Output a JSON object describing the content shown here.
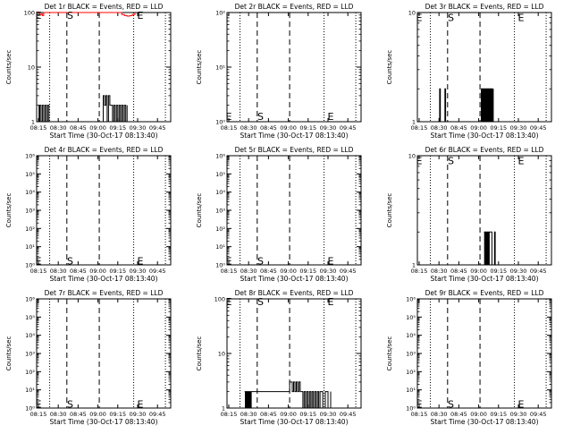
{
  "colors": {
    "events": "#000000",
    "lld": "#ff0000",
    "background": "#ffffff"
  },
  "chart_data": [
    {
      "type": "line",
      "title": "Det 1r BLACK = Events, RED = LLD",
      "xlabel": "Start Time (30-Oct-17 08:13:40)",
      "ylabel": "Counts/sec",
      "y_scale": "log",
      "ylim": [
        1,
        100
      ],
      "y_ticks": [
        "1",
        "10",
        "100"
      ],
      "x_ticks": [
        "08:15",
        "08:30",
        "08:45",
        "09:00",
        "09:15",
        "09:30",
        "09:45"
      ],
      "xlim": [
        "08:13:40",
        "09:55:00"
      ],
      "markers": [
        {
          "label": "E",
          "x": "08:15:00",
          "y": 90
        },
        {
          "label": "S",
          "x": "08:39:00",
          "y": 90
        },
        {
          "label": "E",
          "x": "09:32:00",
          "y": 90
        }
      ],
      "vlines_dotted": [
        "08:23:30",
        "09:27:00",
        "09:51:00"
      ],
      "vlines_dashed": [
        "08:36:30",
        "09:01:00"
      ],
      "series": [
        {
          "color": "black",
          "x": [
            "08:15:00",
            "08:15:30",
            "08:16:00",
            "08:17:00",
            "08:18:00",
            "08:19:00",
            "08:20:00",
            "08:21:00",
            "08:22:00",
            "08:23:00",
            "09:04:00",
            "09:05:00",
            "09:06:00",
            "09:07:00",
            "09:08:00",
            "09:09:00",
            "09:10:00",
            "09:11:00",
            "09:12:00",
            "09:13:00",
            "09:14:00",
            "09:15:00",
            "09:16:00",
            "09:17:00",
            "09:18:00",
            "09:19:00",
            "09:20:00",
            "09:21:00",
            "09:22:00"
          ],
          "values": [
            2,
            1,
            2,
            1,
            2,
            1,
            2,
            1,
            2,
            1,
            3,
            2,
            3,
            1,
            3,
            2,
            2,
            1,
            2,
            1,
            2,
            1,
            2,
            1,
            2,
            1,
            2,
            1,
            2
          ]
        },
        {
          "color": "red",
          "x": [
            "08:13:40",
            "08:15:00",
            "08:16:00",
            "08:17:00",
            "08:18:00",
            "08:19:00",
            "09:17:00",
            "09:18:00",
            "09:20:00",
            "09:22:00",
            "09:24:00",
            "09:26:00",
            "09:28:00"
          ],
          "values": [
            100,
            100,
            90,
            94,
            88,
            100,
            100,
            92,
            88,
            86,
            88,
            92,
            100
          ]
        }
      ]
    },
    {
      "type": "line",
      "title": "Det 2r BLACK = Events, RED = LLD",
      "xlabel": "Start Time (30-Oct-17 08:13:40)",
      "ylabel": "Counts/sec",
      "y_scale": "log",
      "ylim": [
        1,
        100
      ],
      "y_ticks": [
        "10⁰",
        "10¹",
        "10²"
      ],
      "x_ticks": [
        "08:15",
        "08:30",
        "08:45",
        "09:00",
        "09:15",
        "09:30",
        "09:45"
      ],
      "xlim": [
        "08:13:40",
        "09:55:00"
      ],
      "markers": [
        {
          "label": "E",
          "x": "08:15:00",
          "y": 1.25
        },
        {
          "label": "S",
          "x": "08:39:00",
          "y": 1.25
        },
        {
          "label": "E",
          "x": "09:32:00",
          "y": 1.25
        }
      ],
      "vlines_dotted": [
        "08:23:30",
        "09:27:00",
        "09:51:00"
      ],
      "vlines_dashed": [
        "08:36:30",
        "09:01:00"
      ],
      "series": []
    },
    {
      "type": "line",
      "title": "Det 3r BLACK = Events, RED = LLD",
      "xlabel": "Start Time (30-Oct-17 08:13:40)",
      "ylabel": "Counts/sec",
      "y_scale": "log",
      "ylim": [
        1,
        10
      ],
      "y_ticks": [
        "1",
        "10"
      ],
      "x_ticks": [
        "08:15",
        "08:30",
        "08:45",
        "09:00",
        "09:15",
        "09:30",
        "09:45"
      ],
      "xlim": [
        "08:13:40",
        "09:55:00"
      ],
      "markers": [
        {
          "label": "E",
          "x": "08:15:00",
          "y": 9
        },
        {
          "label": "S",
          "x": "08:39:00",
          "y": 9
        },
        {
          "label": "E",
          "x": "09:32:00",
          "y": 9
        }
      ],
      "vlines_dotted": [
        "08:23:30",
        "09:27:00",
        "09:51:00"
      ],
      "vlines_dashed": [
        "08:36:30",
        "09:01:00"
      ],
      "series": [
        {
          "color": "black",
          "x": [
            "08:30:00",
            "08:30:30",
            "08:31:00",
            "08:34:00",
            "08:34:30",
            "08:35:00",
            "09:02:00",
            "09:02:30",
            "09:03:00",
            "09:03:30",
            "09:04:00",
            "09:04:30",
            "09:05:00",
            "09:05:30",
            "09:06:00",
            "09:06:30",
            "09:07:00",
            "09:07:30",
            "09:08:00",
            "09:08:30",
            "09:09:00",
            "09:09:30",
            "09:10:00",
            "09:10:30",
            "09:11:00"
          ],
          "values": [
            1,
            2,
            1,
            1,
            2,
            1,
            2,
            1,
            2,
            1,
            2,
            1,
            2,
            1,
            2,
            1,
            2,
            1,
            2,
            1,
            2,
            1,
            2,
            1,
            2
          ]
        }
      ]
    },
    {
      "type": "line",
      "title": "Det 4r BLACK = Events, RED = LLD",
      "xlabel": "Start Time (30-Oct-17 08:13:40)",
      "ylabel": "Counts/sec",
      "y_scale": "log",
      "ylim": [
        1,
        1000000
      ],
      "y_ticks": [
        "10⁰",
        "10¹",
        "10²",
        "10³",
        "10⁴",
        "10⁵",
        "10⁶"
      ],
      "x_ticks": [
        "08:15",
        "08:30",
        "08:45",
        "09:00",
        "09:15",
        "09:30",
        "09:45"
      ],
      "xlim": [
        "08:13:40",
        "09:55:00"
      ],
      "markers": [
        {
          "label": "E",
          "x": "08:15:00",
          "y": 1.7
        },
        {
          "label": "S",
          "x": "08:39:00",
          "y": 1.7
        },
        {
          "label": "E",
          "x": "09:32:00",
          "y": 1.7
        }
      ],
      "vlines_dotted": [
        "08:23:30",
        "09:27:00",
        "09:51:00"
      ],
      "vlines_dashed": [
        "08:36:30",
        "09:01:00"
      ],
      "series": []
    },
    {
      "type": "line",
      "title": "Det 5r BLACK = Events, RED = LLD",
      "xlabel": "Start Time (30-Oct-17 08:13:40)",
      "ylabel": "Counts/sec",
      "y_scale": "log",
      "ylim": [
        1,
        1000000
      ],
      "y_ticks": [
        "10⁰",
        "10¹",
        "10²",
        "10³",
        "10⁴",
        "10⁵",
        "10⁶"
      ],
      "x_ticks": [
        "08:15",
        "08:30",
        "08:45",
        "09:00",
        "09:15",
        "09:30",
        "09:45"
      ],
      "xlim": [
        "08:13:40",
        "09:55:00"
      ],
      "markers": [
        {
          "label": "E",
          "x": "08:15:00",
          "y": 1.7
        },
        {
          "label": "S",
          "x": "08:39:00",
          "y": 1.7
        },
        {
          "label": "E",
          "x": "09:32:00",
          "y": 1.7
        }
      ],
      "vlines_dotted": [
        "08:23:30",
        "09:27:00",
        "09:51:00"
      ],
      "vlines_dashed": [
        "08:36:30",
        "09:01:00"
      ],
      "series": []
    },
    {
      "type": "line",
      "title": "Det 6r BLACK = Events, RED = LLD",
      "xlabel": "Start Time (30-Oct-17 08:13:40)",
      "ylabel": "Counts/sec",
      "y_scale": "log",
      "ylim": [
        1,
        10
      ],
      "y_ticks": [
        "1",
        "10"
      ],
      "x_ticks": [
        "08:15",
        "08:30",
        "08:45",
        "09:00",
        "09:15",
        "09:30",
        "09:45"
      ],
      "xlim": [
        "08:13:40",
        "09:55:00"
      ],
      "markers": [
        {
          "label": "E",
          "x": "08:15:00",
          "y": 9
        },
        {
          "label": "S",
          "x": "08:39:00",
          "y": 9
        },
        {
          "label": "E",
          "x": "09:32:00",
          "y": 9
        }
      ],
      "vlines_dotted": [
        "08:23:30",
        "09:27:00",
        "09:51:00"
      ],
      "vlines_dashed": [
        "08:36:30",
        "09:01:00"
      ],
      "series": [
        {
          "color": "black",
          "x": [
            "09:04:00",
            "09:04:30",
            "09:05:00",
            "09:05:30",
            "09:06:00",
            "09:06:30",
            "09:07:00",
            "09:07:30",
            "09:08:00",
            "09:10:00",
            "09:12:00",
            "09:12:30"
          ],
          "values": [
            2,
            1,
            2,
            1,
            2,
            1,
            2,
            1,
            2,
            1,
            2,
            1
          ]
        }
      ]
    },
    {
      "type": "line",
      "title": "Det 7r BLACK = Events, RED = LLD",
      "xlabel": "Start Time (30-Oct-17 08:13:40)",
      "ylabel": "Counts/sec",
      "y_scale": "log",
      "ylim": [
        1,
        1000000
      ],
      "y_ticks": [
        "10⁰",
        "10¹",
        "10²",
        "10³",
        "10⁴",
        "10⁵",
        "10⁶"
      ],
      "x_ticks": [
        "08:15",
        "08:30",
        "08:45",
        "09:00",
        "09:15",
        "09:30",
        "09:45"
      ],
      "xlim": [
        "08:13:40",
        "09:55:00"
      ],
      "markers": [
        {
          "label": "E",
          "x": "08:15:00",
          "y": 1.7
        },
        {
          "label": "S",
          "x": "08:39:00",
          "y": 1.7
        },
        {
          "label": "E",
          "x": "09:32:00",
          "y": 1.7
        }
      ],
      "vlines_dotted": [
        "08:23:30",
        "09:27:00",
        "09:51:00"
      ],
      "vlines_dashed": [
        "08:36:30",
        "09:01:00"
      ],
      "series": []
    },
    {
      "type": "line",
      "title": "Det 8r BLACK = Events, RED = LLD",
      "xlabel": "Start Time (30-Oct-17 08:13:40)",
      "ylabel": "Counts/sec",
      "y_scale": "log",
      "ylim": [
        1,
        100
      ],
      "y_ticks": [
        "1",
        "10",
        "100"
      ],
      "x_ticks": [
        "08:15",
        "08:30",
        "08:45",
        "09:00",
        "09:15",
        "09:30",
        "09:45"
      ],
      "xlim": [
        "08:13:40",
        "09:55:00"
      ],
      "markers": [
        {
          "label": "E",
          "x": "08:15:00",
          "y": 90
        },
        {
          "label": "S",
          "x": "08:39:00",
          "y": 90
        },
        {
          "label": "E",
          "x": "09:32:00",
          "y": 90
        }
      ],
      "vlines_dotted": [
        "08:23:30",
        "09:27:00",
        "09:51:00"
      ],
      "vlines_dashed": [
        "08:36:30",
        "09:01:00"
      ],
      "series": [
        {
          "color": "black",
          "x": [
            "08:27:00",
            "08:27:30",
            "08:28:00",
            "08:28:30",
            "08:29:00",
            "08:29:30",
            "08:30:00",
            "08:30:30",
            "08:31:00",
            "08:31:30",
            "08:32:00",
            "08:59:00",
            "09:01:00",
            "09:03:00",
            "09:04:00",
            "09:05:00",
            "09:06:00",
            "09:07:00",
            "09:08:00",
            "09:09:00",
            "09:10:00",
            "09:11:00",
            "09:12:00",
            "09:13:00",
            "09:14:00",
            "09:15:00",
            "09:16:00",
            "09:17:00",
            "09:18:00",
            "09:19:00",
            "09:20:00",
            "09:21:00",
            "09:22:00",
            "09:23:00",
            "09:24:00",
            "09:26:00",
            "09:28:00",
            "09:30:00",
            "09:32:00"
          ],
          "values": [
            2,
            1,
            2,
            1,
            2,
            1,
            2,
            1,
            2,
            1,
            2,
            2,
            3,
            2,
            3,
            2,
            3,
            2,
            3,
            2,
            2,
            1,
            2,
            1,
            2,
            1,
            2,
            1,
            2,
            1,
            2,
            1,
            2,
            1,
            2,
            1,
            2,
            1,
            2
          ]
        }
      ]
    },
    {
      "type": "line",
      "title": "Det 9r BLACK = Events, RED = LLD",
      "xlabel": "Start Time (30-Oct-17 08:13:40)",
      "ylabel": "Counts/sec",
      "y_scale": "log",
      "ylim": [
        1,
        1000000
      ],
      "y_ticks": [
        "10⁰",
        "10¹",
        "10²",
        "10³",
        "10⁴",
        "10⁵",
        "10⁶"
      ],
      "x_ticks": [
        "08:15",
        "08:30",
        "08:45",
        "09:00",
        "09:15",
        "09:30",
        "09:45"
      ],
      "xlim": [
        "08:13:40",
        "09:55:00"
      ],
      "markers": [
        {
          "label": "E",
          "x": "08:15:00",
          "y": 1.7
        },
        {
          "label": "S",
          "x": "08:39:00",
          "y": 1.7
        },
        {
          "label": "E",
          "x": "09:32:00",
          "y": 1.7
        }
      ],
      "vlines_dotted": [
        "08:23:30",
        "09:27:00",
        "09:51:00"
      ],
      "vlines_dashed": [
        "08:36:30",
        "09:01:00"
      ],
      "series": []
    }
  ]
}
